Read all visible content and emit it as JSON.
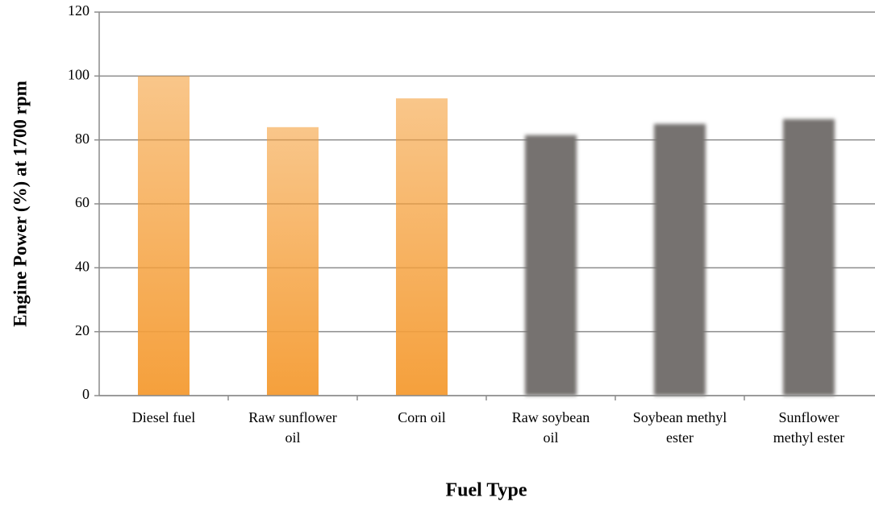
{
  "chart_data": {
    "type": "bar",
    "categories": [
      "Diesel fuel",
      "Raw sunflower\noil",
      "Corn oil",
      "Raw soybean\noil",
      "Soybean methyl\nester",
      "Sunflower\nmethyl ester"
    ],
    "values": [
      100,
      84,
      93,
      81.5,
      85,
      86.5
    ],
    "colors": [
      "#f5a03c",
      "#f5a03c",
      "#f5a03c",
      "#76726f",
      "#76726f",
      "#76726f"
    ],
    "ylim": [
      0,
      120
    ],
    "yticks": [
      0,
      20,
      40,
      60,
      80,
      100,
      120
    ],
    "grid": true,
    "ylabel": "Engine Power (%) at 1700 rpm",
    "xlabel": "Fuel Type"
  }
}
